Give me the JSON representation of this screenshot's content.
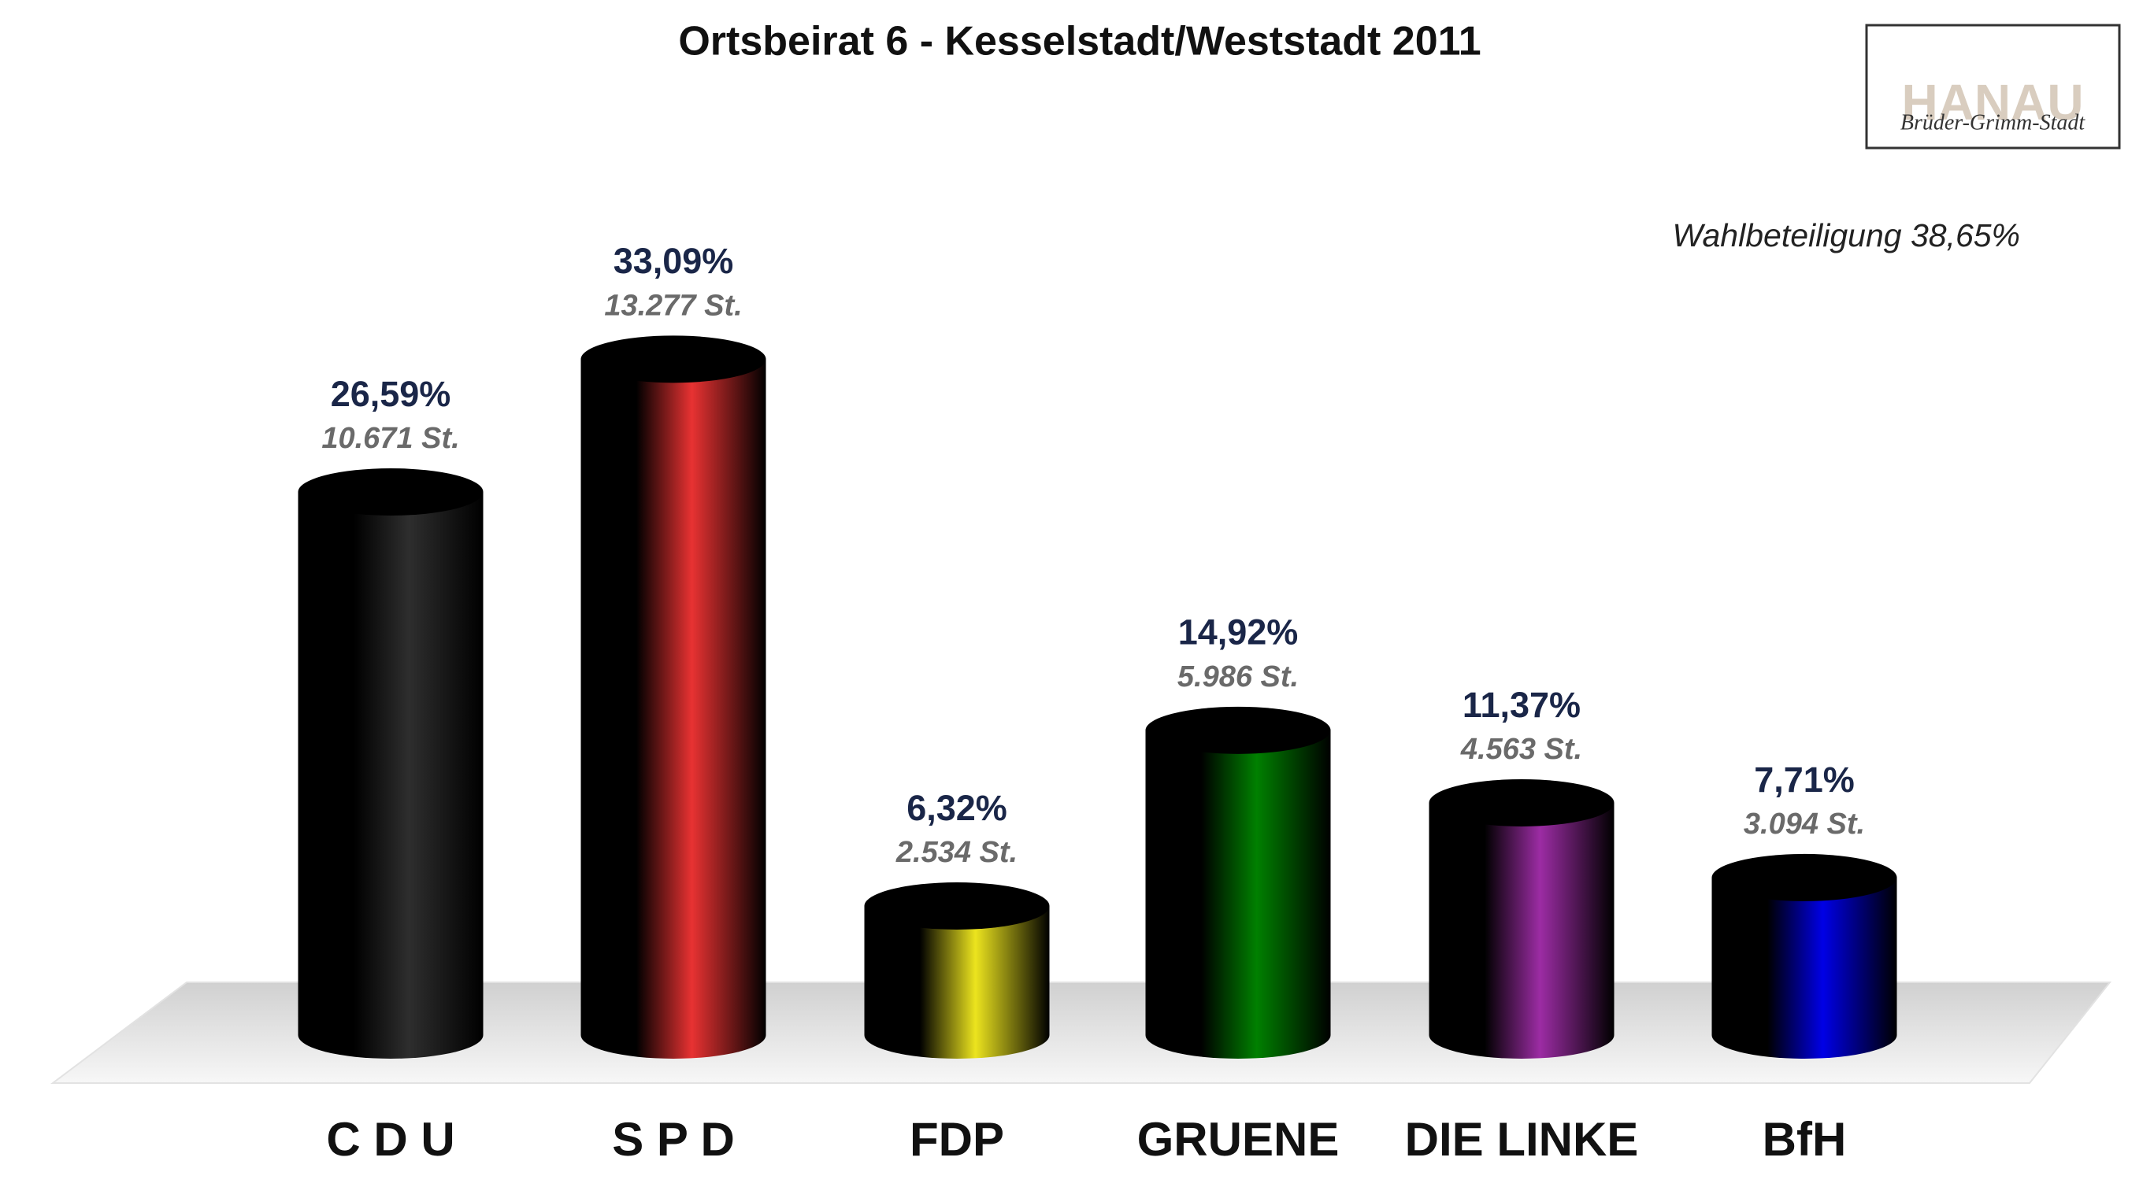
{
  "chart_data": {
    "type": "bar3d",
    "title": "Ortsbeirat 6 - Kesselstadt/Weststadt 2011",
    "annotation": "Wahlbeteiligung 38,65%",
    "logo": {
      "title": "HANAU",
      "subtitle": "Brüder-Grimm-Stadt"
    },
    "categories": [
      "C D U",
      "S P D",
      "FDP",
      "GRUENE",
      "DIE LINKE",
      "BfH"
    ],
    "values": [
      26.59,
      33.09,
      6.32,
      14.92,
      11.37,
      7.71
    ],
    "value_labels": [
      "26,59%",
      "33,09%",
      "6,32%",
      "14,92%",
      "11,37%",
      "7,71%"
    ],
    "votes": [
      10671,
      13277,
      2534,
      5986,
      4563,
      3094
    ],
    "vote_labels": [
      "10.671 St.",
      "13.277 St.",
      "2.534 St.",
      "5.986 St.",
      "4.563 St.",
      "3.094 St."
    ],
    "colors": [
      "#2e2e2e",
      "#e83232",
      "#ece41e",
      "#008000",
      "#9c2ca4",
      "#0000e6"
    ]
  }
}
